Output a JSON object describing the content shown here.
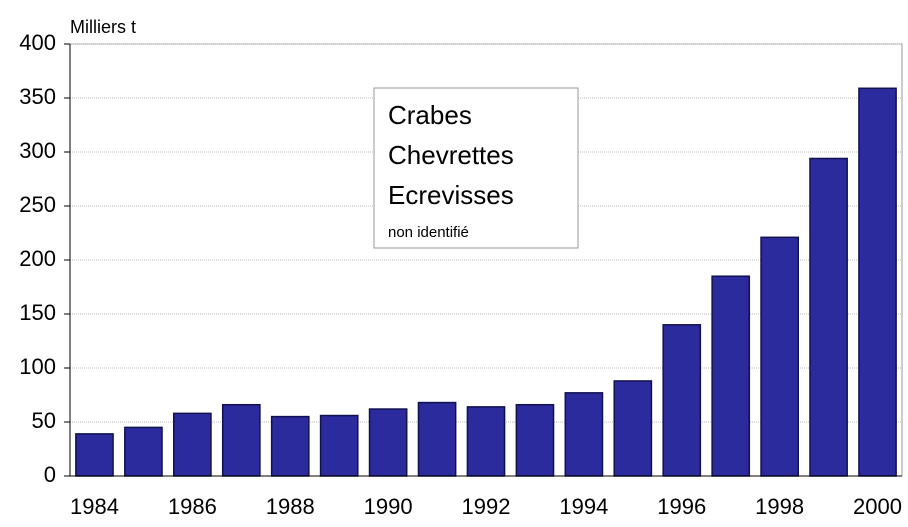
{
  "chart_data": {
    "type": "bar",
    "y_label": "Milliers t",
    "categories": [
      "1984",
      null,
      "1986",
      null,
      "1988",
      null,
      "1990",
      null,
      "1992",
      null,
      "1994",
      null,
      "1996",
      null,
      "1998",
      null,
      "2000"
    ],
    "values": [
      39,
      45,
      58,
      66,
      55,
      56,
      62,
      68,
      64,
      66,
      77,
      88,
      140,
      185,
      221,
      294,
      359
    ],
    "color": "#2b2b9e",
    "ylim": [
      0,
      400
    ],
    "yticks": [
      0,
      50,
      100,
      150,
      200,
      250,
      300,
      350,
      400
    ],
    "grid": true,
    "annotations": [
      "Crabes",
      "Chevrettes",
      "Ecrevisses",
      "non identifié"
    ]
  }
}
